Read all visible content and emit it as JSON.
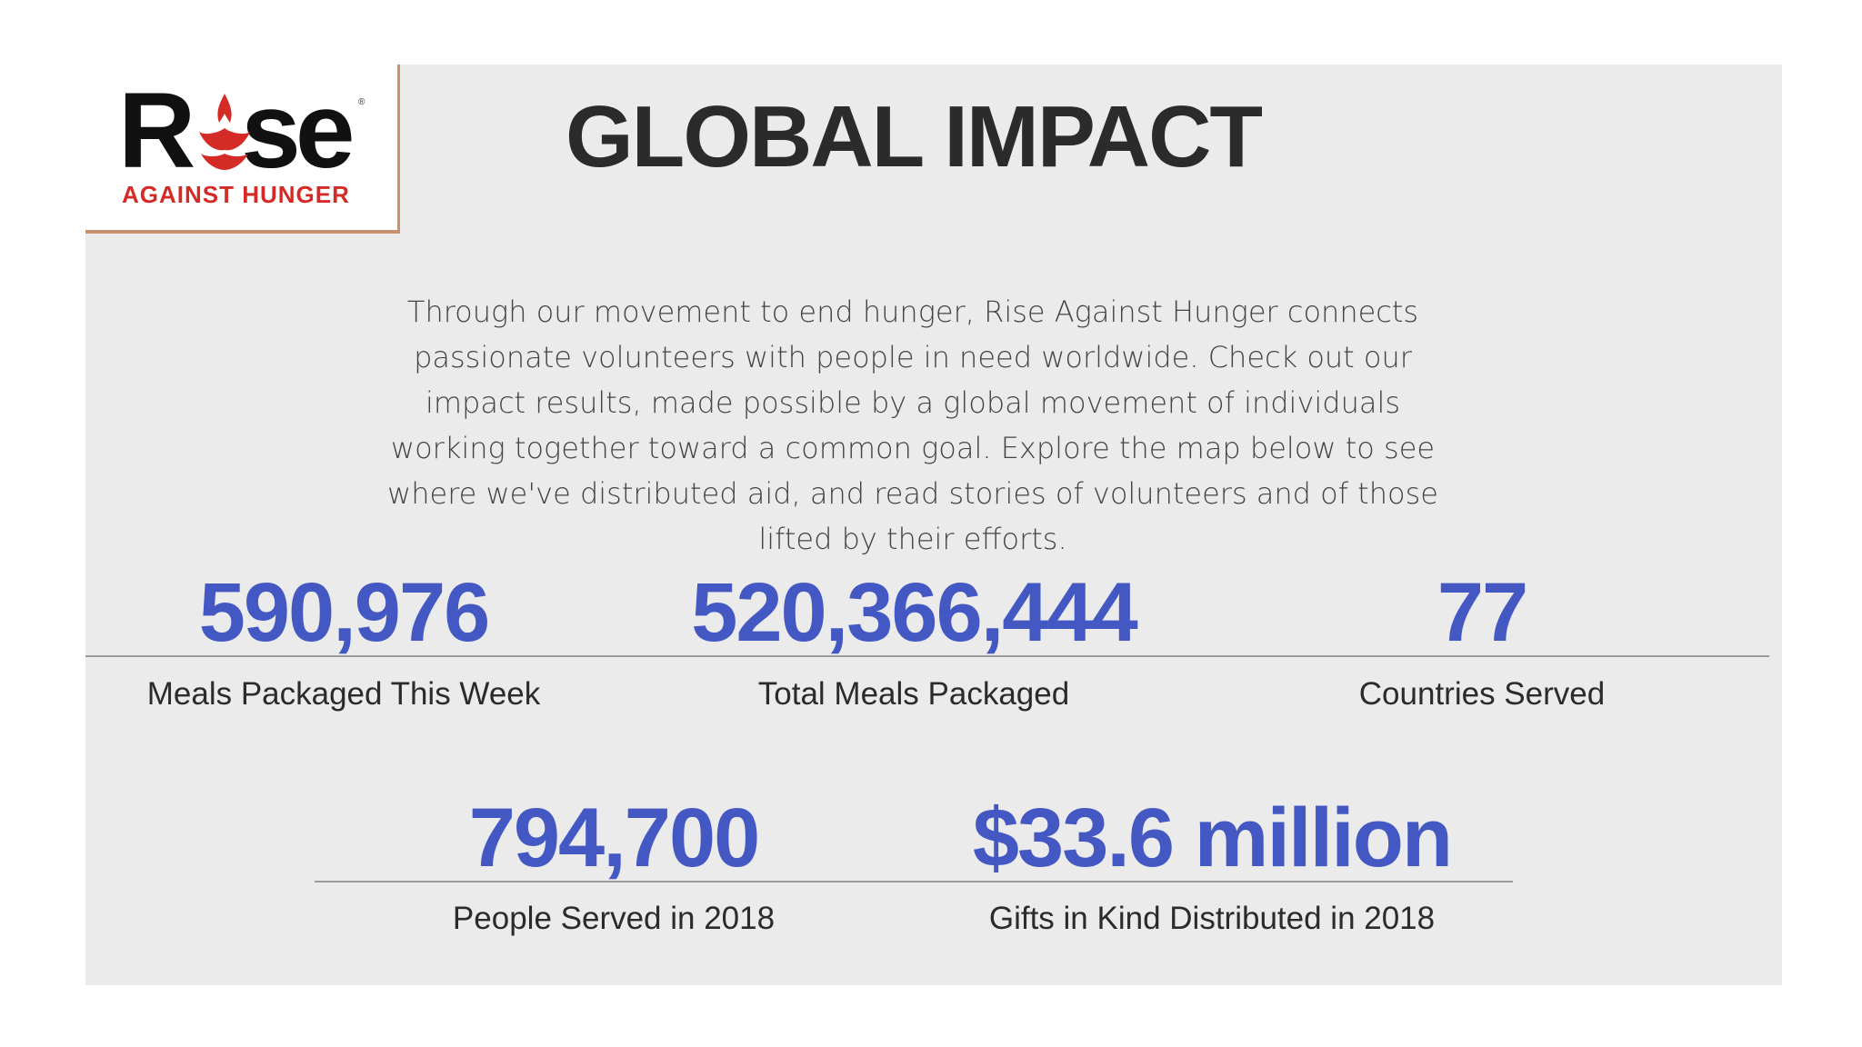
{
  "logo": {
    "word": "Rise",
    "tagline": "AGAINST HUNGER",
    "registered": "®"
  },
  "header": {
    "title": "GLOBAL IMPACT"
  },
  "intro": {
    "text": "Through our movement to end hunger, Rise Against Hunger connects passionate volunteers with people in need worldwide. Check out our impact results, made possible by a global movement of individuals working together toward a common goal. Explore the map below to see where we've distributed aid, and read stories of volunteers and of those lifted by their efforts."
  },
  "stats": [
    {
      "value": "590,976",
      "label": "Meals Packaged This Week"
    },
    {
      "value": "520,366,444",
      "label": "Total Meals Packaged"
    },
    {
      "value": "77",
      "label": "Countries Served"
    },
    {
      "value": "794,700",
      "label": "People Served in 2018"
    },
    {
      "value": "$33.6 million",
      "label": "Gifts in Kind Distributed in 2018"
    }
  ],
  "colors": {
    "accent": "#4458c4",
    "brand_red": "#d52b27",
    "panel_bg": "#ebebec",
    "text": "#2b2b2b"
  }
}
